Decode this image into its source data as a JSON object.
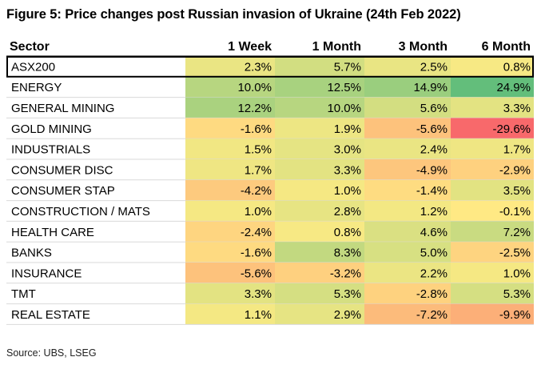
{
  "title": "Figure 5: Price changes post Russian invasion of Ukraine (24th Feb 2022)",
  "source": "Source: UBS, LSEG",
  "chart_data": {
    "type": "table",
    "title": "Figure 5: Price changes post Russian invasion of Ukraine (24th Feb 2022)",
    "row_header": "Sector",
    "columns": [
      "1 Week",
      "1 Month",
      "3 Month",
      "6 Month"
    ],
    "rows": [
      {
        "sector": "ASX200",
        "values": [
          2.3,
          5.7,
          2.5,
          0.8
        ],
        "labels": [
          "2.3%",
          "5.7%",
          "2.5%",
          "0.8%"
        ]
      },
      {
        "sector": "ENERGY",
        "values": [
          10.0,
          12.5,
          14.9,
          24.9
        ],
        "labels": [
          "10.0%",
          "12.5%",
          "14.9%",
          "24.9%"
        ]
      },
      {
        "sector": "GENERAL MINING",
        "values": [
          12.2,
          10.0,
          5.6,
          3.3
        ],
        "labels": [
          "12.2%",
          "10.0%",
          "5.6%",
          "3.3%"
        ]
      },
      {
        "sector": "GOLD MINING",
        "values": [
          -1.6,
          1.9,
          -5.6,
          -29.6
        ],
        "labels": [
          "-1.6%",
          "1.9%",
          "-5.6%",
          "-29.6%"
        ]
      },
      {
        "sector": "INDUSTRIALS",
        "values": [
          1.5,
          3.0,
          2.4,
          1.7
        ],
        "labels": [
          "1.5%",
          "3.0%",
          "2.4%",
          "1.7%"
        ]
      },
      {
        "sector": "CONSUMER DISC",
        "values": [
          1.7,
          3.3,
          -4.9,
          -2.9
        ],
        "labels": [
          "1.7%",
          "3.3%",
          "-4.9%",
          "-2.9%"
        ]
      },
      {
        "sector": "CONSUMER STAP",
        "values": [
          -4.2,
          1.0,
          -1.4,
          3.5
        ],
        "labels": [
          "-4.2%",
          "1.0%",
          "-1.4%",
          "3.5%"
        ]
      },
      {
        "sector": "CONSTRUCTION / MATS",
        "values": [
          1.0,
          2.8,
          1.2,
          -0.1
        ],
        "labels": [
          "1.0%",
          "2.8%",
          "1.2%",
          "-0.1%"
        ]
      },
      {
        "sector": "HEALTH CARE",
        "values": [
          -2.4,
          0.8,
          4.6,
          7.2
        ],
        "labels": [
          "-2.4%",
          "0.8%",
          "4.6%",
          "7.2%"
        ]
      },
      {
        "sector": "BANKS",
        "values": [
          -1.6,
          8.3,
          5.0,
          -2.5
        ],
        "labels": [
          "-1.6%",
          "8.3%",
          "5.0%",
          "-2.5%"
        ]
      },
      {
        "sector": "INSURANCE",
        "values": [
          -5.6,
          -3.2,
          2.2,
          1.0
        ],
        "labels": [
          "-5.6%",
          "-3.2%",
          "2.2%",
          "1.0%"
        ]
      },
      {
        "sector": "TMT",
        "values": [
          3.3,
          5.3,
          -2.8,
          5.3
        ],
        "labels": [
          "3.3%",
          "5.3%",
          "-2.8%",
          "5.3%"
        ]
      },
      {
        "sector": "REAL ESTATE",
        "values": [
          1.1,
          2.9,
          -7.2,
          -9.9
        ],
        "labels": [
          "1.1%",
          "2.9%",
          "-7.2%",
          "-9.9%"
        ]
      }
    ],
    "highlighted_row": "ASX200",
    "colors": {
      "strong_negative": "#f8696b",
      "neutral": "#ffeb84",
      "strong_positive": "#63be7b",
      "highlight_border": "#000000"
    }
  }
}
